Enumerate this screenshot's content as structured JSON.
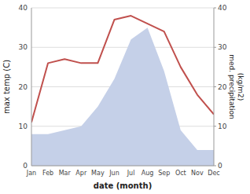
{
  "chart_data": {
    "type": "line",
    "categories": [
      "Jan",
      "Feb",
      "Mar",
      "Apr",
      "May",
      "Jun",
      "Jul",
      "Aug",
      "Sep",
      "Oct",
      "Nov",
      "Dec"
    ],
    "xlabel": "date (month)",
    "ylabel": "max temp (C)",
    "y2label": "med. precipitation\n(kg/m2)",
    "series": [
      {
        "type": "area",
        "axis": "y2",
        "color": "#c5d0e8",
        "values": [
          8,
          8,
          9,
          10,
          15,
          22,
          32,
          35,
          24,
          9,
          4,
          4
        ]
      },
      {
        "type": "line",
        "color": "#c0504d",
        "values": [
          11,
          26,
          27,
          26,
          26,
          37,
          38,
          36,
          34,
          25,
          18,
          13
        ]
      }
    ],
    "ylim": [
      0,
      40
    ],
    "yticks": [
      0,
      10,
      20,
      30,
      40
    ],
    "y2lim": [
      0,
      40
    ],
    "y2ticks": [
      0,
      10,
      20,
      30,
      40
    ],
    "grid": true
  }
}
